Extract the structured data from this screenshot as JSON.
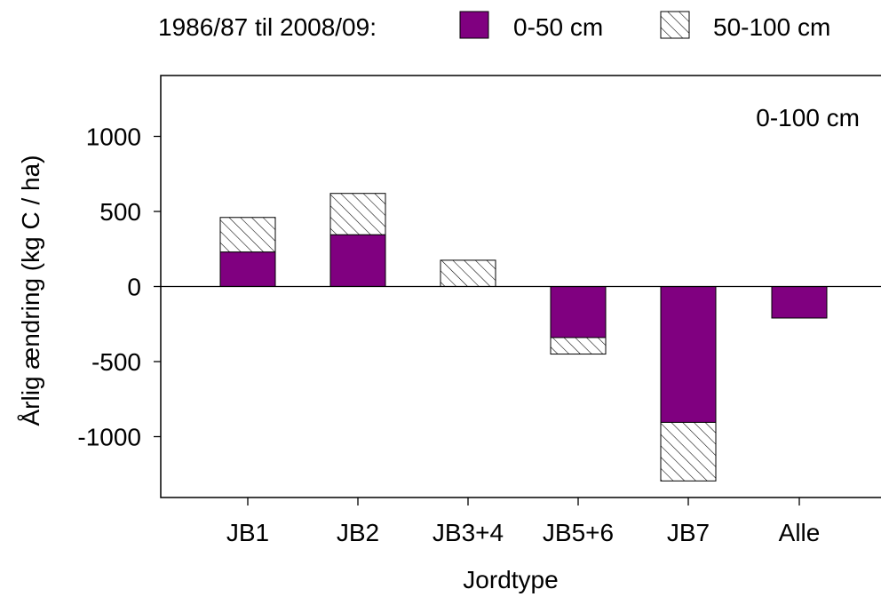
{
  "chart_data": {
    "type": "bar",
    "stacked": true,
    "title": "",
    "annotation": "0-100 cm",
    "legend": {
      "prefix": "1986/87 til 2008/09:",
      "placement": "top",
      "entries": [
        {
          "label": "0-50 cm",
          "style": "solid"
        },
        {
          "label": "50-100 cm",
          "style": "hatched"
        }
      ]
    },
    "xlabel": "Jordtype",
    "ylabel": "Årlig ændring (kg C / ha)",
    "ylim": [
      -1400,
      1400
    ],
    "yticks": [
      1000,
      500,
      0,
      -500,
      -1000
    ],
    "categories": [
      "JB1",
      "JB2",
      "JB3+4",
      "JB5+6",
      "JB7",
      "Alle"
    ],
    "series": [
      {
        "name": "0-50 cm",
        "values": [
          230,
          345,
          0,
          -340,
          -905,
          -210
        ]
      },
      {
        "name": "50-100 cm",
        "values": [
          230,
          275,
          175,
          -110,
          -390,
          0
        ]
      }
    ],
    "colors": {
      "series1": "#800080",
      "series2_hatch": "#000000",
      "axis": "#000000"
    },
    "grid": false
  }
}
